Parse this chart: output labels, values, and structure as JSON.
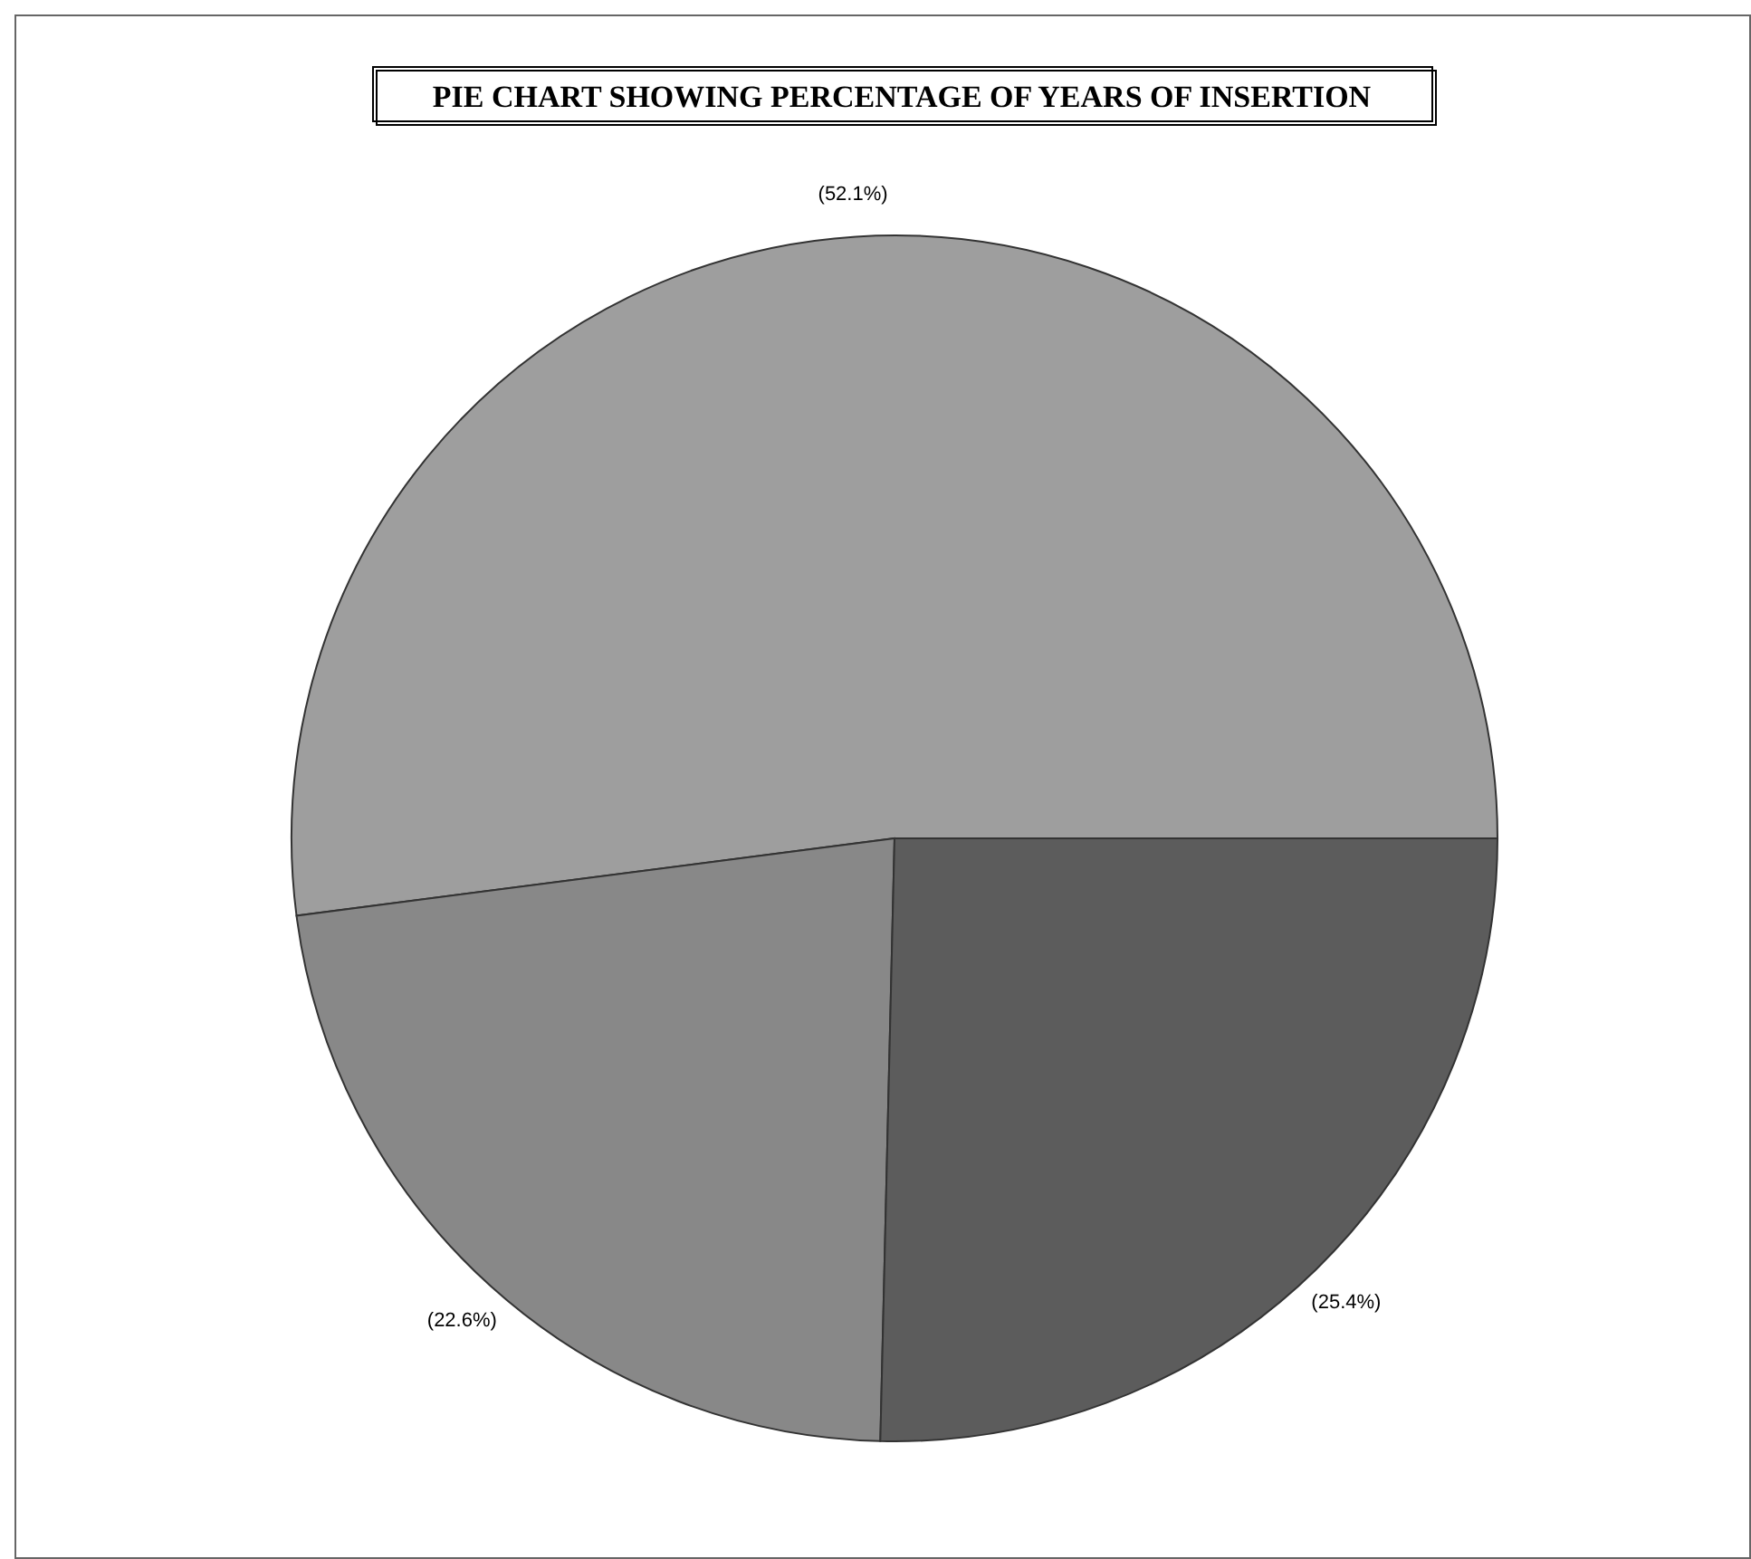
{
  "chart_data": {
    "type": "pie",
    "title": "PIE CHART SHOWING PERCENTAGE OF YEARS OF INSERTION",
    "categories": [
      null,
      null,
      null
    ],
    "values": [
      52.1,
      22.6,
      25.4
    ],
    "colors": [
      "#9e9e9e",
      "#888888",
      "#5c5c5c"
    ],
    "value_labels": [
      "(52.1%)",
      "(22.6%)",
      "(25.4%)"
    ]
  }
}
